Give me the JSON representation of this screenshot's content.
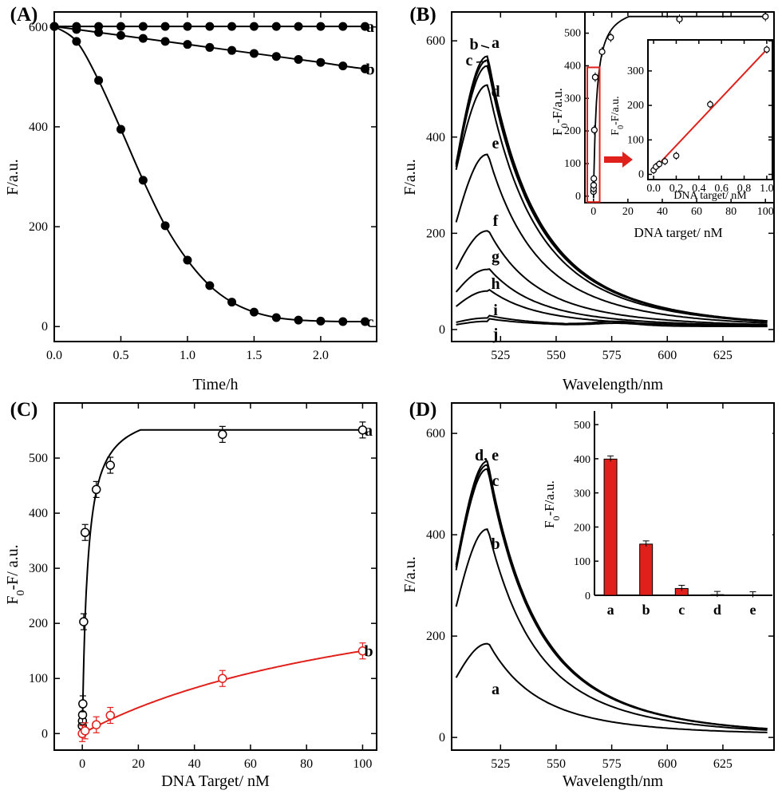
{
  "chart_data": [
    {
      "panel": "(A)",
      "type": "line",
      "xlabel": "Time/h",
      "ylabel": "F/a.u.",
      "xlim": [
        0,
        2.42
      ],
      "ylim": [
        -30,
        630
      ],
      "xticks": [
        0.0,
        0.5,
        1.0,
        1.5,
        2.0
      ],
      "xtick_labels": [
        "0.0",
        "0.5",
        "1.0",
        "1.5",
        "2.0"
      ],
      "yticks": [
        0,
        200,
        400,
        600
      ],
      "series": [
        {
          "name": "a",
          "x": [
            0,
            0.167,
            0.333,
            0.5,
            0.667,
            0.833,
            1.0,
            1.167,
            1.333,
            1.5,
            1.667,
            1.833,
            2.0,
            2.167,
            2.333
          ],
          "y": [
            601,
            601,
            601,
            601,
            601,
            601,
            601,
            601,
            601,
            601,
            601,
            601,
            601,
            601,
            601
          ]
        },
        {
          "name": "b",
          "x": [
            0,
            0.167,
            0.333,
            0.5,
            0.667,
            0.833,
            1.0,
            1.167,
            1.333,
            1.5,
            1.667,
            1.833,
            2.0,
            2.167,
            2.333
          ],
          "y": [
            601,
            595,
            589,
            583,
            577,
            571,
            565,
            559,
            553,
            547,
            541,
            535,
            529,
            522,
            516
          ]
        },
        {
          "name": "c",
          "x": [
            0,
            0.167,
            0.333,
            0.5,
            0.667,
            0.833,
            1.0,
            1.167,
            1.333,
            1.5,
            1.667,
            1.833,
            2.0,
            2.167,
            2.333
          ],
          "y": [
            601,
            571,
            493,
            395,
            293,
            202,
            133,
            82,
            49,
            29,
            18,
            13,
            11,
            10,
            10
          ]
        }
      ]
    },
    {
      "panel": "(B)",
      "type": "line",
      "xlabel": "Wavelength/nm",
      "ylabel": "F/a.u.",
      "xlim": [
        503,
        648
      ],
      "ylim": [
        -25,
        660
      ],
      "xticks": [
        525,
        550,
        575,
        600,
        625
      ],
      "yticks": [
        0,
        200,
        400,
        600
      ],
      "peak_wavelength": 519,
      "series": [
        {
          "name": "a",
          "peak": 568,
          "start": 345
        },
        {
          "name": "b",
          "peak": 560,
          "start": 342
        },
        {
          "name": "c",
          "peak": 548,
          "start": 338
        },
        {
          "name": "d",
          "peak": 508,
          "start": 332
        },
        {
          "name": "e",
          "peak": 364,
          "start": 223
        },
        {
          "name": "f",
          "peak": 205,
          "start": 125
        },
        {
          "name": "g",
          "peak": 125,
          "start": 78
        },
        {
          "name": "h",
          "peak": 80,
          "start": 48
        },
        {
          "name": "i",
          "peak": 24,
          "start": 15
        },
        {
          "name": "j",
          "peak": 17,
          "start": 10
        }
      ],
      "inset_main": {
        "xlabel": "DNA target/ nM",
        "ylabel": "F0-F/a.u.",
        "xlim": [
          -5,
          105
        ],
        "ylim": [
          -20,
          565
        ],
        "xticks": [
          0,
          20,
          40,
          60,
          80,
          100
        ],
        "yticks": [
          0,
          100,
          200,
          300,
          400,
          500
        ],
        "x": [
          0,
          0.05,
          0.1,
          0.2,
          0.5,
          1,
          5,
          10,
          50,
          100
        ],
        "y": [
          14,
          23,
          34,
          54,
          203,
          365,
          443,
          487,
          543,
          551
        ]
      },
      "inset_zoom": {
        "xlabel": "DNA target/ nM",
        "ylabel": "F0-F/a.u.",
        "xlim": [
          -0.05,
          1.05
        ],
        "ylim": [
          -15,
          390
        ],
        "xticks": [
          0.0,
          0.2,
          0.4,
          0.6,
          0.8,
          1.0
        ],
        "xtick_labels": [
          "0.0",
          "0.2",
          "0.4",
          "0.6",
          "0.8",
          "1.0"
        ],
        "yticks": [
          0,
          100,
          200,
          300
        ],
        "x": [
          0,
          0.02,
          0.05,
          0.1,
          0.2,
          0.5,
          1.0
        ],
        "y": [
          12,
          22,
          30,
          38,
          54,
          203,
          362
        ],
        "fit_line": {
          "x": [
            -0.02,
            1.0
          ],
          "y": [
            7,
            362
          ]
        }
      }
    },
    {
      "panel": "(C)",
      "type": "scatter",
      "xlabel": "DNA Target/ nM",
      "ylabel": "F0-F/ a.u.",
      "xlim": [
        -10,
        105
      ],
      "ylim": [
        -30,
        600
      ],
      "xticks": [
        0,
        20,
        40,
        60,
        80,
        100
      ],
      "yticks": [
        0,
        100,
        200,
        300,
        400,
        500
      ],
      "series": [
        {
          "name": "a",
          "x": [
            0,
            0.05,
            0.1,
            0.2,
            0.5,
            1,
            5,
            10,
            50,
            100
          ],
          "y": [
            14,
            23,
            34,
            54,
            203,
            365,
            443,
            487,
            543,
            551
          ]
        },
        {
          "name": "b",
          "x": [
            0,
            1,
            5,
            10,
            50,
            100
          ],
          "y": [
            0,
            5,
            16,
            33,
            100,
            150
          ]
        }
      ]
    },
    {
      "panel": "(D)",
      "type": "line",
      "xlabel": "Wavelength/nm",
      "ylabel": "F/a.u.",
      "xlim": [
        503,
        648
      ],
      "ylim": [
        -25,
        660
      ],
      "xticks": [
        525,
        550,
        575,
        600,
        625
      ],
      "yticks": [
        0,
        200,
        400,
        600
      ],
      "peak_wavelength": 519,
      "series": [
        {
          "name": "a",
          "peak": 185,
          "start": 118
        },
        {
          "name": "b",
          "peak": 411,
          "start": 258
        },
        {
          "name": "c",
          "peak": 530,
          "start": 330
        },
        {
          "name": "d",
          "peak": 545,
          "start": 340
        },
        {
          "name": "e",
          "peak": 538,
          "start": 336
        }
      ],
      "curve_labels": [
        "a",
        "b",
        "c",
        "d, e"
      ],
      "inset": {
        "type": "bar",
        "ylabel": "F0-F/a.u.",
        "categories": [
          "a",
          "b",
          "c",
          "d",
          "e"
        ],
        "values": [
          399,
          150,
          20,
          2,
          1
        ],
        "ylim": [
          0,
          540
        ],
        "yticks": [
          0,
          100,
          200,
          300,
          400,
          500
        ]
      }
    }
  ],
  "panel_labels": [
    "(A)",
    "(B)",
    "(C)",
    "(D)"
  ],
  "colors": {
    "black": "#000000",
    "red": "#e0201b"
  }
}
